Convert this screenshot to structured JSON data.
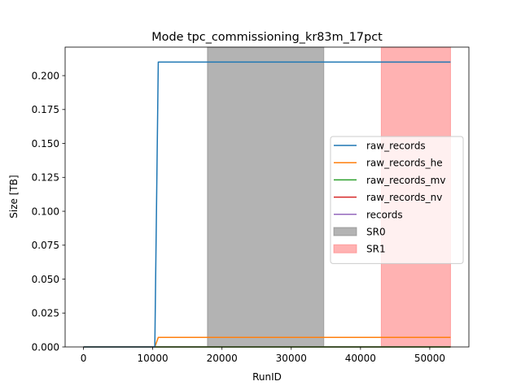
{
  "chart_data": {
    "type": "line",
    "title": "Mode tpc_commissioning_kr83m_17pct",
    "xlabel": "RunID",
    "ylabel": "Size [TB]",
    "xlim": [
      -2650,
      55650
    ],
    "ylim": [
      0,
      0.221
    ],
    "xticks": [
      0,
      10000,
      20000,
      30000,
      40000,
      50000
    ],
    "xtick_labels": [
      "0",
      "10000",
      "20000",
      "30000",
      "40000",
      "50000"
    ],
    "yticks": [
      0.0,
      0.025,
      0.05,
      0.075,
      0.1,
      0.125,
      0.15,
      0.175,
      0.2
    ],
    "ytick_labels": [
      "0.000",
      "0.025",
      "0.050",
      "0.075",
      "0.100",
      "0.125",
      "0.150",
      "0.175",
      "0.200"
    ],
    "grid": false,
    "legend_position": "center-right",
    "series": [
      {
        "name": "raw_records",
        "color": "#1f77b4",
        "x": [
          0,
          10300,
          10800,
          53000
        ],
        "y": [
          0.0,
          0.0,
          0.21,
          0.21
        ]
      },
      {
        "name": "raw_records_he",
        "color": "#ff7f0e",
        "x": [
          0,
          10300,
          10800,
          53000
        ],
        "y": [
          0.0,
          0.0,
          0.007,
          0.007
        ]
      },
      {
        "name": "raw_records_mv",
        "color": "#2ca02c",
        "x": [
          0,
          53000
        ],
        "y": [
          0.0,
          0.0
        ]
      },
      {
        "name": "raw_records_nv",
        "color": "#d62728",
        "x": [
          0,
          53000
        ],
        "y": [
          0.0,
          0.0
        ]
      },
      {
        "name": "records",
        "color": "#9467bd",
        "x": [
          0,
          53000
        ],
        "y": [
          0.0,
          0.0
        ]
      }
    ],
    "spans": [
      {
        "name": "SR0",
        "x": [
          17900,
          34700
        ],
        "color": "#808080",
        "opacity": 0.6
      },
      {
        "name": "SR1",
        "x": [
          43000,
          53000
        ],
        "color": "#ff7f7f",
        "opacity": 0.6
      }
    ]
  }
}
